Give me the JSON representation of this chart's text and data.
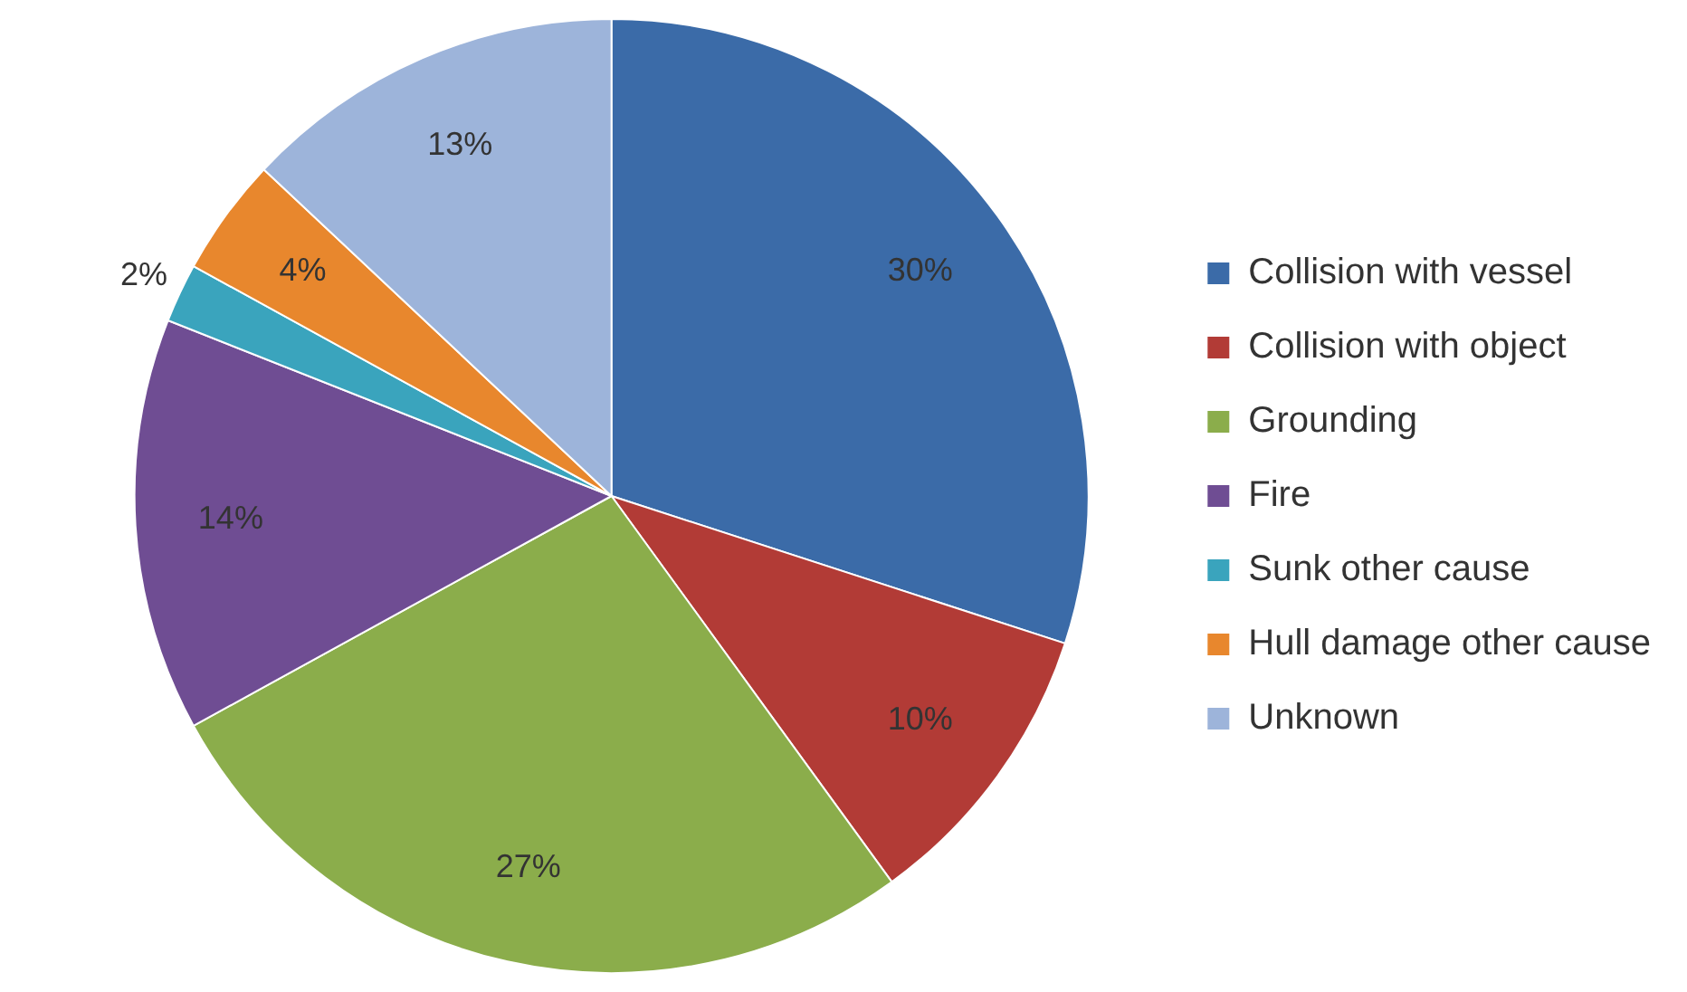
{
  "chart_data": {
    "type": "pie",
    "categories": [
      "Collision with vessel",
      "Collision with object",
      "Grounding",
      "Fire",
      "Sunk other cause",
      "Hull damage other cause",
      "Unknown"
    ],
    "values": [
      30,
      10,
      27,
      14,
      2,
      4,
      13
    ],
    "colors": [
      "#3b6ba8",
      "#b23b36",
      "#8bad4b",
      "#6f4d93",
      "#3aa4bd",
      "#e8872d",
      "#9db4da"
    ],
    "value_labels": [
      "30%",
      "10%",
      "27%",
      "14%",
      "2%",
      "4%",
      "13%"
    ],
    "legend": "right"
  }
}
